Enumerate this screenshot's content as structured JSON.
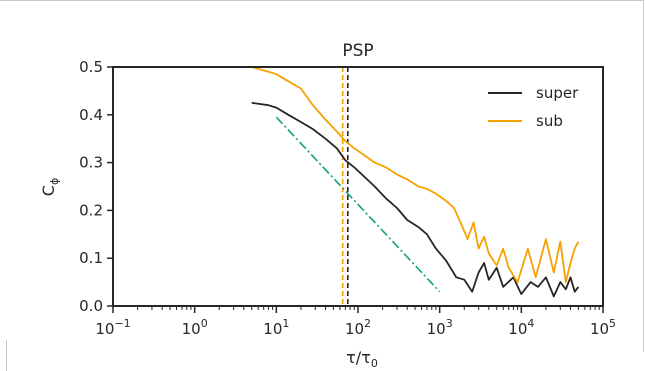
{
  "chart_data": {
    "type": "line",
    "title": "PSP",
    "xlabel": "τ/τ",
    "xlabel_sub": "0",
    "ylabel": "C",
    "ylabel_sub": "ϕ",
    "x_scale": "log",
    "xlim": [
      0.1,
      100000
    ],
    "ylim": [
      0,
      0.5
    ],
    "x_ticks": [
      {
        "value": 0.1,
        "base": "10",
        "exp": "−1"
      },
      {
        "value": 1,
        "base": "10",
        "exp": "0"
      },
      {
        "value": 10,
        "base": "10",
        "exp": "1"
      },
      {
        "value": 100,
        "base": "10",
        "exp": "2"
      },
      {
        "value": 1000,
        "base": "10",
        "exp": "3"
      },
      {
        "value": 10000,
        "base": "10",
        "exp": "4"
      },
      {
        "value": 100000,
        "base": "10",
        "exp": "5"
      }
    ],
    "y_ticks": [
      {
        "value": 0.0,
        "label": "0.0"
      },
      {
        "value": 0.1,
        "label": "0.1"
      },
      {
        "value": 0.2,
        "label": "0.2"
      },
      {
        "value": 0.3,
        "label": "0.3"
      },
      {
        "value": 0.4,
        "label": "0.4"
      },
      {
        "value": 0.5,
        "label": "0.5"
      }
    ],
    "grid": false,
    "legend_position": "top-right",
    "series": [
      {
        "name": "super",
        "color": "#262626",
        "x": [
          5,
          8,
          10,
          14,
          20,
          28,
          40,
          55,
          70,
          90,
          120,
          160,
          220,
          300,
          400,
          550,
          700,
          900,
          1200,
          1600,
          2000,
          2500,
          3000,
          3500,
          4000,
          5000,
          6000,
          8000,
          10000,
          13000,
          16000,
          20000,
          25000,
          30000,
          35000,
          40000,
          45000,
          50000
        ],
        "y": [
          0.425,
          0.42,
          0.415,
          0.4,
          0.385,
          0.37,
          0.35,
          0.33,
          0.305,
          0.29,
          0.27,
          0.25,
          0.225,
          0.205,
          0.18,
          0.165,
          0.15,
          0.12,
          0.095,
          0.06,
          0.055,
          0.03,
          0.07,
          0.09,
          0.055,
          0.08,
          0.04,
          0.06,
          0.025,
          0.05,
          0.04,
          0.06,
          0.02,
          0.05,
          0.035,
          0.06,
          0.03,
          0.04
        ]
      },
      {
        "name": "sub",
        "color": "#f5a200",
        "x": [
          5,
          8,
          10,
          14,
          20,
          28,
          40,
          55,
          70,
          90,
          120,
          160,
          220,
          300,
          400,
          550,
          700,
          900,
          1200,
          1500,
          1800,
          2200,
          2600,
          3000,
          3500,
          4000,
          5000,
          6000,
          7000,
          9000,
          12000,
          15000,
          20000,
          25000,
          30000,
          35000,
          40000,
          45000,
          50000
        ],
        "y": [
          0.5,
          0.49,
          0.485,
          0.47,
          0.455,
          0.42,
          0.39,
          0.365,
          0.345,
          0.33,
          0.315,
          0.3,
          0.29,
          0.275,
          0.265,
          0.25,
          0.245,
          0.235,
          0.22,
          0.205,
          0.175,
          0.14,
          0.175,
          0.12,
          0.145,
          0.11,
          0.085,
          0.12,
          0.08,
          0.05,
          0.12,
          0.06,
          0.14,
          0.07,
          0.135,
          0.05,
          0.09,
          0.12,
          0.135
        ]
      }
    ],
    "reference_lines": [
      {
        "kind": "vertical",
        "x": 65,
        "color": "#f5a200",
        "style": "dashed"
      },
      {
        "kind": "vertical",
        "x": 75,
        "color": "#262626",
        "style": "dashed"
      },
      {
        "kind": "segment",
        "x": [
          10,
          1000
        ],
        "y": [
          0.395,
          0.03
        ],
        "color": "#12a07a",
        "style": "dashdot"
      }
    ]
  }
}
